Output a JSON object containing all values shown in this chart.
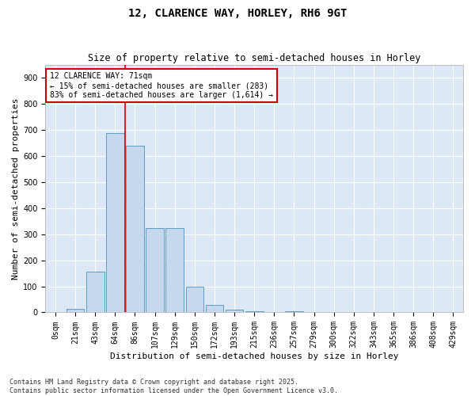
{
  "title": "12, CLARENCE WAY, HORLEY, RH6 9GT",
  "subtitle": "Size of property relative to semi-detached houses in Horley",
  "xlabel": "Distribution of semi-detached houses by size in Horley",
  "ylabel": "Number of semi-detached properties",
  "bar_labels": [
    "0sqm",
    "21sqm",
    "43sqm",
    "64sqm",
    "86sqm",
    "107sqm",
    "129sqm",
    "150sqm",
    "172sqm",
    "193sqm",
    "215sqm",
    "236sqm",
    "257sqm",
    "279sqm",
    "300sqm",
    "322sqm",
    "343sqm",
    "365sqm",
    "386sqm",
    "408sqm",
    "429sqm"
  ],
  "bar_values": [
    0,
    15,
    155,
    690,
    640,
    325,
    325,
    98,
    30,
    12,
    5,
    0,
    5,
    0,
    0,
    0,
    0,
    0,
    0,
    0,
    0
  ],
  "bar_color": "#c5d8ed",
  "bar_edge_color": "#5090c0",
  "vline_x": 3.5,
  "vline_color": "#cc0000",
  "annotation_title": "12 CLARENCE WAY: 71sqm",
  "annotation_line1": "← 15% of semi-detached houses are smaller (283)",
  "annotation_line2": "83% of semi-detached houses are larger (1,614) →",
  "annotation_box_color": "#cc0000",
  "ylim": [
    0,
    950
  ],
  "yticks": [
    0,
    100,
    200,
    300,
    400,
    500,
    600,
    700,
    800,
    900
  ],
  "bg_color": "#dce8f5",
  "footer1": "Contains HM Land Registry data © Crown copyright and database right 2025.",
  "footer2": "Contains public sector information licensed under the Open Government Licence v3.0.",
  "title_fontsize": 10,
  "subtitle_fontsize": 8.5,
  "axis_label_fontsize": 8,
  "tick_fontsize": 7,
  "annotation_fontsize": 7,
  "footer_fontsize": 6
}
